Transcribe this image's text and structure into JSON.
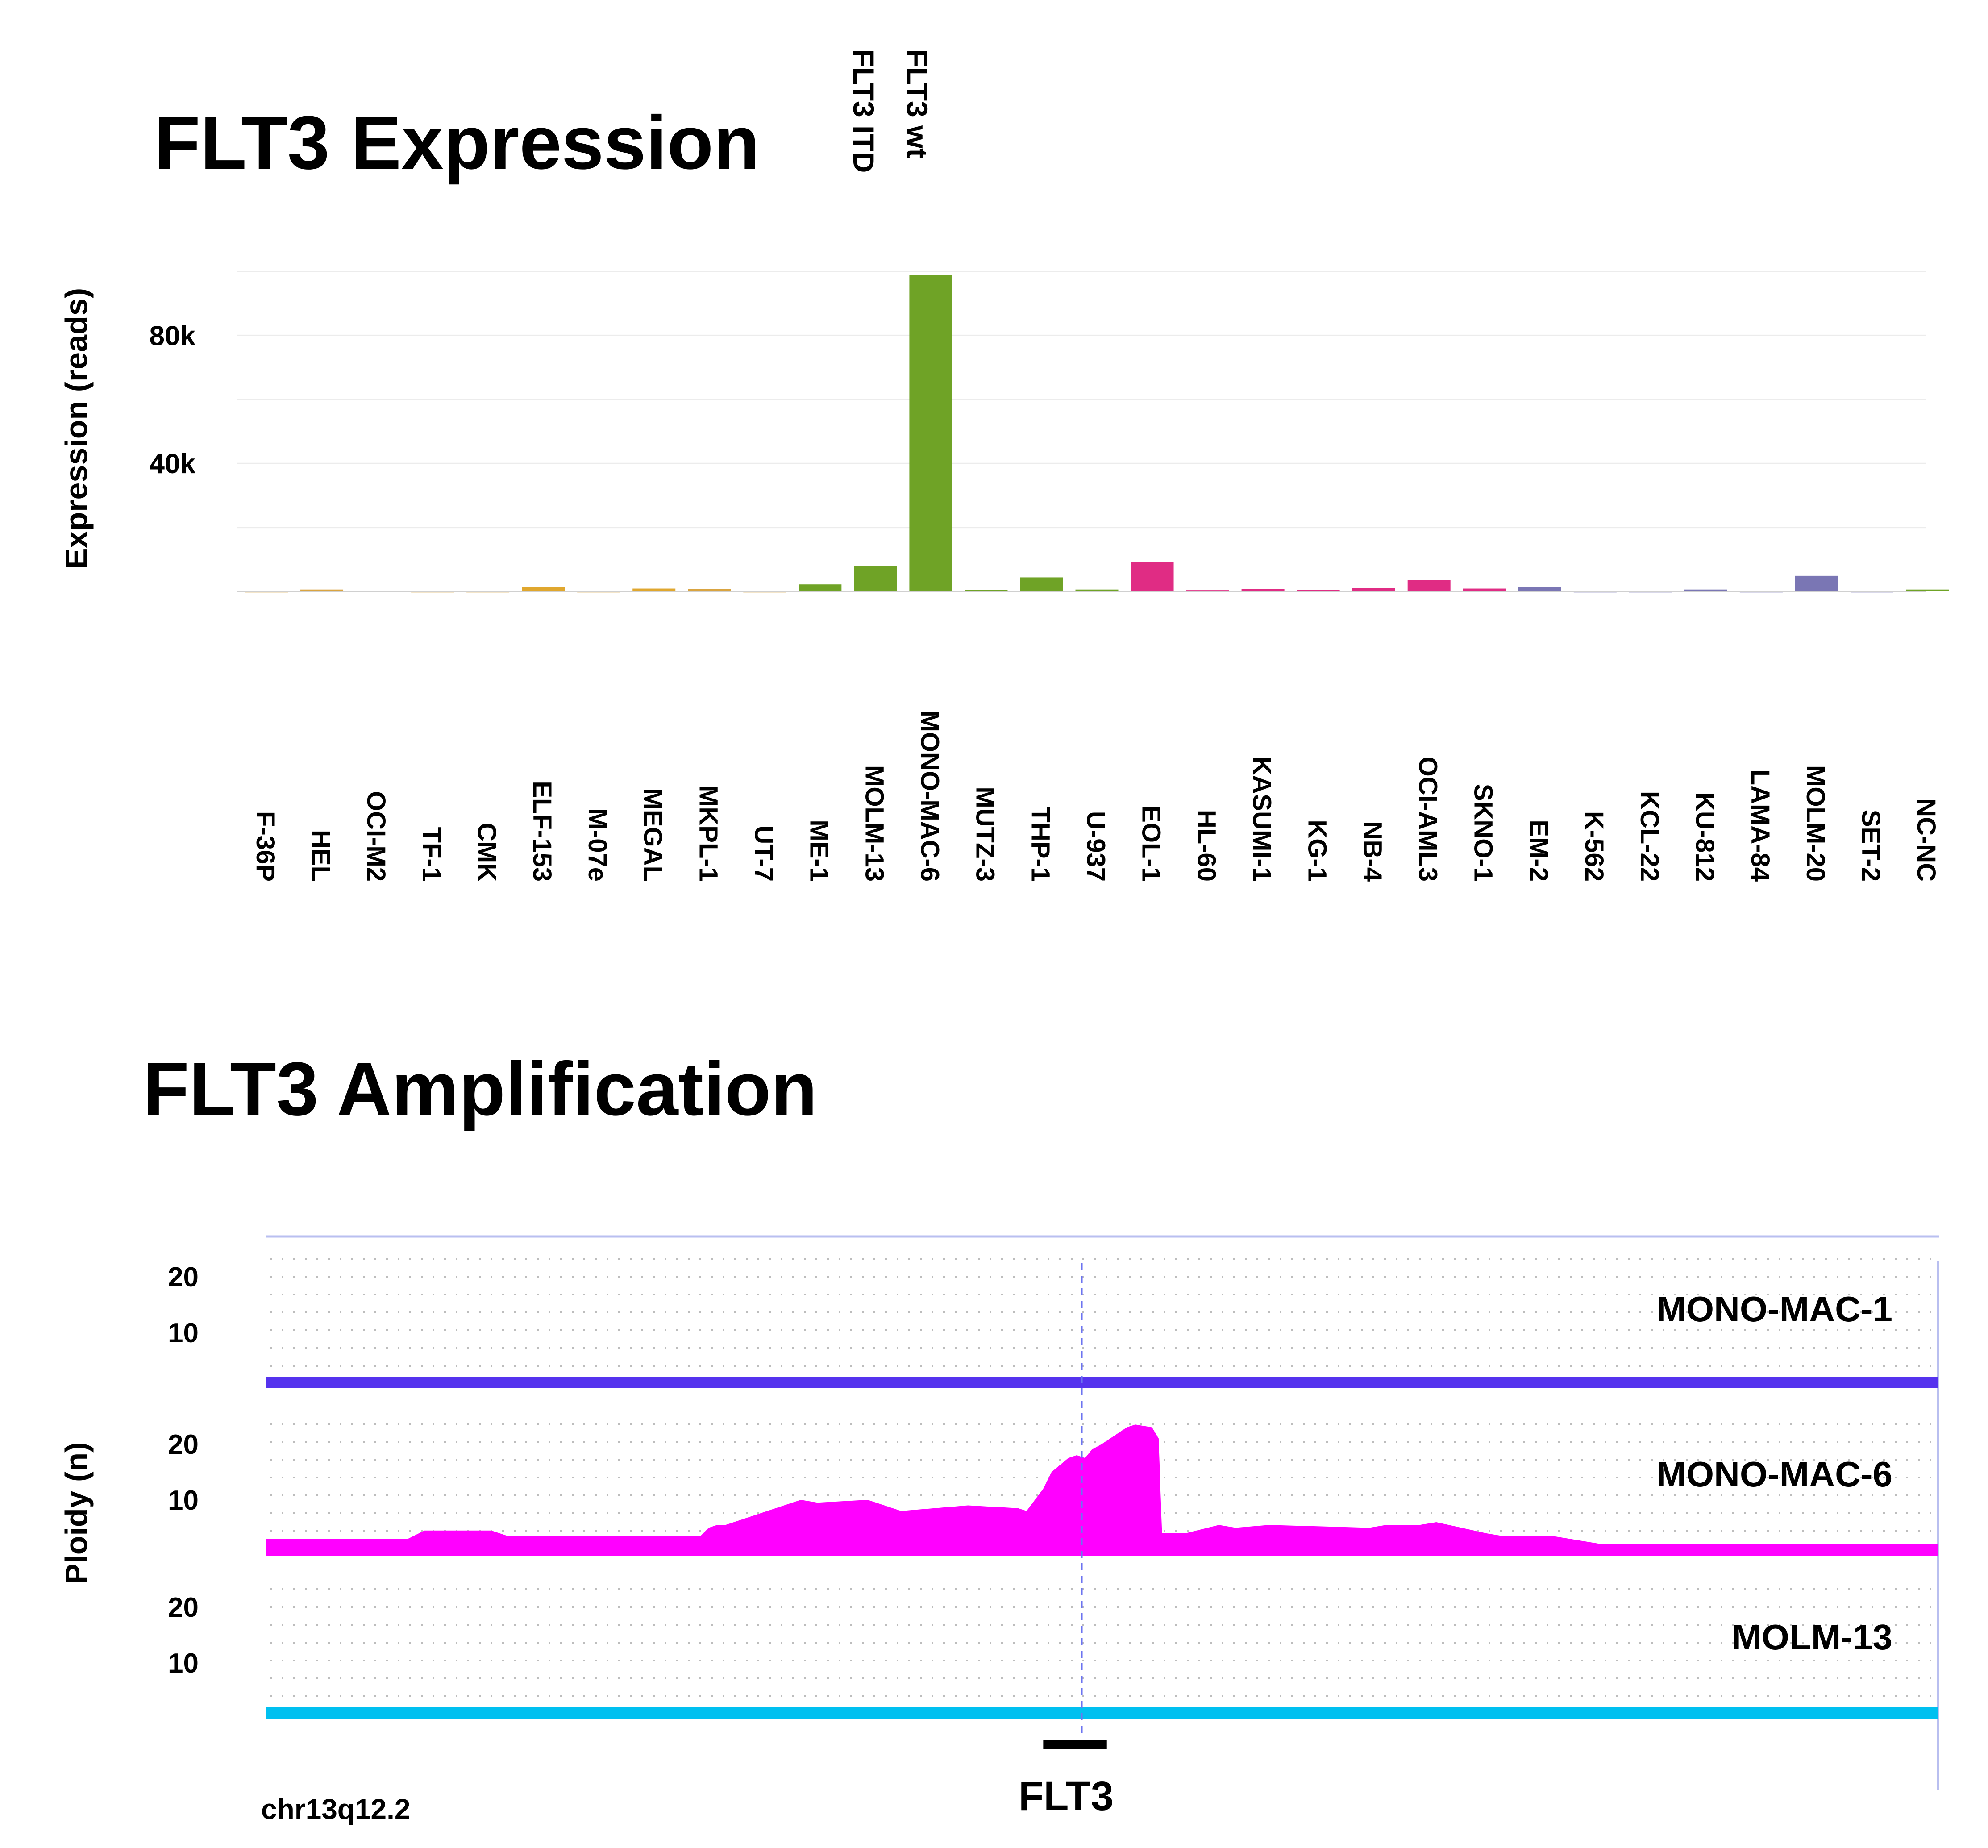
{
  "chart_data": [
    {
      "type": "bar",
      "title": "FLT3 Expression",
      "ylabel": "Expression (reads)",
      "xlabel": "",
      "ylim": [
        0,
        100000
      ],
      "yticks": [
        {
          "value": 40000,
          "label": "40k"
        },
        {
          "value": 80000,
          "label": "80k"
        }
      ],
      "legend": [
        "FLT3 wt",
        "FLT3 ITD"
      ],
      "categories": [
        "F-36P",
        "HEL",
        "OCI-M2",
        "TF-1",
        "CMK",
        "ELF-153",
        "M-07e",
        "MEGAL",
        "MKPL-1",
        "UT-7",
        "ME-1",
        "MOLM-13",
        "MONO-MAC-6",
        "MUTZ-3",
        "THP-1",
        "U-937",
        "EOL-1",
        "HL-60",
        "KASUMI-1",
        "KG-1",
        "NB-4",
        "OCI-AML3",
        "SKNO-1",
        "EM-2",
        "K-562",
        "KCL-22",
        "KU-812",
        "LAMA-84",
        "MOLM-20",
        "SET-2",
        "NC-NC"
      ],
      "values": [
        100,
        600,
        150,
        100,
        100,
        1400,
        100,
        900,
        700,
        100,
        2200,
        8000,
        99000,
        500,
        4400,
        600,
        9200,
        400,
        800,
        500,
        1000,
        3500,
        900,
        1300,
        100,
        100,
        600,
        100,
        4900,
        100,
        600
      ],
      "colors": [
        "#d9a441",
        "#d9a441",
        "#d9a441",
        "#d9a441",
        "#d9a441",
        "#e0a72e",
        "#d9a441",
        "#e0a72e",
        "#d9a441",
        "#d9a441",
        "#6fa326",
        "#6fa326",
        "#6fa326",
        "#6fa326",
        "#6fa326",
        "#6fa326",
        "#e02c84",
        "#e02c84",
        "#e02c84",
        "#e02c84",
        "#e02c84",
        "#e02c84",
        "#e02c84",
        "#7a76b4",
        "#7a76b4",
        "#7a76b4",
        "#7a76b4",
        "#7a76b4",
        "#7a76b4",
        "#7a76b4",
        "#6fa326"
      ]
    },
    {
      "type": "area",
      "title": "FLT3 Amplification",
      "ylabel": "Ploidy (n)",
      "xlabel": "chr13q12.2",
      "ylim": [
        0,
        30
      ],
      "yticks": [
        {
          "value": 10,
          "label": "10"
        },
        {
          "value": 20,
          "label": "20"
        }
      ],
      "gene": "FLT3",
      "gene_pos": [
        0.465,
        0.503
      ],
      "marker_pos": 0.488,
      "series": [
        {
          "name": "MONO-MAC-1",
          "color": "#5533ee",
          "x": [
            0,
            0.3,
            0.49,
            0.52,
            1
          ],
          "values": [
            2,
            2,
            2,
            2,
            2
          ]
        },
        {
          "name": "MONO-MAC-6",
          "color": "#ff00ff",
          "x": [
            0,
            0.085,
            0.095,
            0.135,
            0.145,
            0.26,
            0.265,
            0.27,
            0.275,
            0.29,
            0.31,
            0.32,
            0.33,
            0.36,
            0.38,
            0.42,
            0.45,
            0.455,
            0.465,
            0.47,
            0.48,
            0.485,
            0.49,
            0.494,
            0.5,
            0.51,
            0.515,
            0.52,
            0.53,
            0.534,
            0.536,
            0.55,
            0.57,
            0.58,
            0.6,
            0.66,
            0.67,
            0.69,
            0.7,
            0.73,
            0.74,
            0.77,
            0.78,
            0.8,
            1
          ],
          "values": [
            3,
            3,
            4.5,
            4.5,
            3.5,
            3.5,
            5,
            5.5,
            5.5,
            7,
            9,
            10,
            9.5,
            10,
            8,
            9,
            8.5,
            8,
            12,
            15,
            17.5,
            18,
            17.5,
            19,
            20,
            22,
            23,
            23.5,
            23,
            21,
            4,
            4,
            5.5,
            5,
            5.5,
            5,
            5.5,
            5.5,
            6,
            4,
            3.5,
            3.5,
            3,
            2,
            2
          ]
        },
        {
          "name": "MOLM-13",
          "color": "#00c0f0",
          "x": [
            0,
            0.3,
            0.49,
            0.52,
            1
          ],
          "values": [
            2,
            2,
            2,
            2,
            2
          ]
        }
      ]
    }
  ]
}
